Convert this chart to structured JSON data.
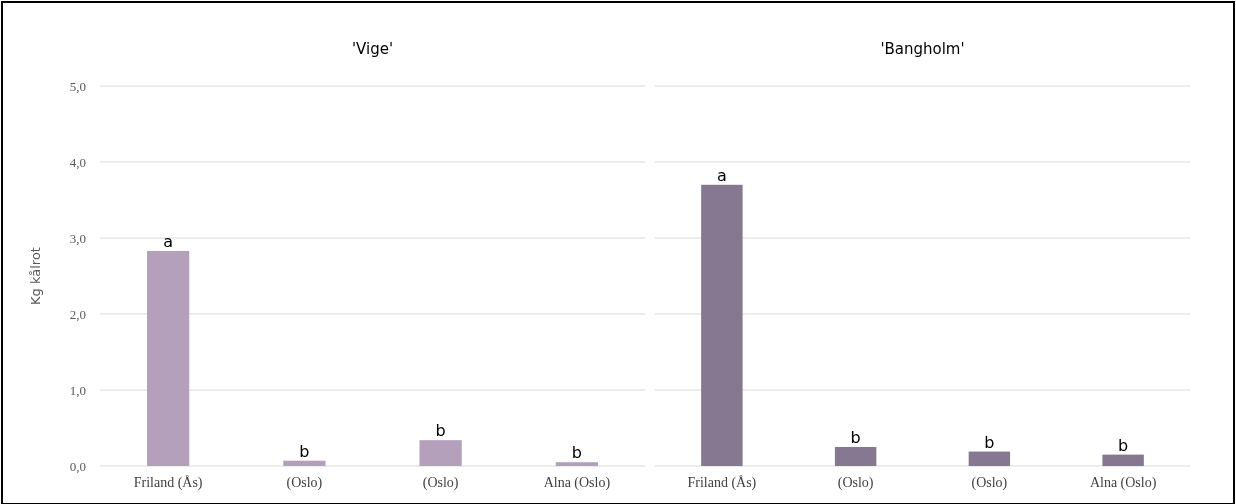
{
  "chart_data": [
    {
      "type": "bar",
      "title": "'Vige'",
      "ylabel": "Kg kålrot",
      "categories": [
        "Friland (Ås)",
        "(Oslo)",
        "(Oslo)",
        "Alna (Oslo)"
      ],
      "values": [
        2.83,
        0.07,
        0.34,
        0.05
      ],
      "color": "#b5a0bc",
      "ylim": [
        0,
        5
      ],
      "yticks": [
        {
          "value": 0,
          "label": "0,0"
        },
        {
          "value": 1,
          "label": "1,0"
        },
        {
          "value": 2,
          "label": "2,0"
        },
        {
          "value": 3,
          "label": "3,0"
        },
        {
          "value": 4,
          "label": "4,0"
        },
        {
          "value": 5,
          "label": "5,0"
        }
      ],
      "grid": "y",
      "annotations": [
        {
          "text": "a",
          "y": 2.83
        },
        {
          "text": "b",
          "y": 0.07
        },
        {
          "text": "b",
          "y": 0.34
        },
        {
          "text": "b",
          "y": 0.05
        }
      ]
    },
    {
      "type": "bar",
      "title": "'Bangholm'",
      "categories": [
        "Friland (Ås)",
        "(Oslo)",
        "(Oslo)",
        "Alna (Oslo)"
      ],
      "values": [
        3.7,
        0.25,
        0.19,
        0.15
      ],
      "color": "#877891",
      "ylim": [
        0,
        5
      ],
      "yticks": [
        0,
        1,
        2,
        3,
        4,
        5
      ],
      "grid": "y",
      "tick_labels": "x",
      "annotations": [
        {
          "text": "a",
          "y": 3.7
        },
        {
          "text": "b",
          "y": 0.25
        },
        {
          "text": "b",
          "y": 0.19
        },
        {
          "text": "b",
          "y": 0.15
        }
      ]
    }
  ]
}
